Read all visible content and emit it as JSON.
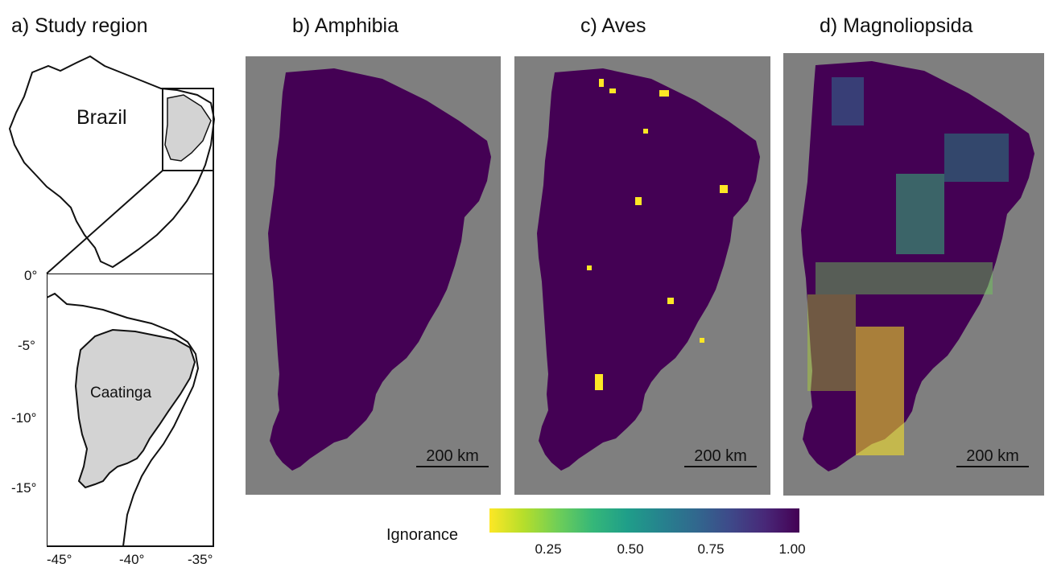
{
  "panels": {
    "a": {
      "title": "a) Study region",
      "country_label": "Brazil",
      "region_label": "Caatinga",
      "lat_ticks": [
        "0°",
        "-5°",
        "-10°",
        "-15°"
      ],
      "lon_ticks": [
        "-45°",
        "-40°",
        "-35°"
      ]
    },
    "b": {
      "title": "b) Amphibia",
      "scale": "200 km"
    },
    "c": {
      "title": "c) Aves",
      "scale": "200 km"
    },
    "d": {
      "title": "d) Magnoliopsida",
      "scale": "200 km"
    }
  },
  "legend": {
    "title": "Ignorance",
    "ticks": [
      "0.25",
      "0.50",
      "0.75",
      "1.00"
    ],
    "colors": [
      "#fde725",
      "#6ece58",
      "#1f9e89",
      "#31688e",
      "#482878",
      "#440154"
    ]
  },
  "colors": {
    "background_gray": "#7f7f7f",
    "dark_purple": "#440154",
    "region_fill": "#d3d3d3"
  }
}
